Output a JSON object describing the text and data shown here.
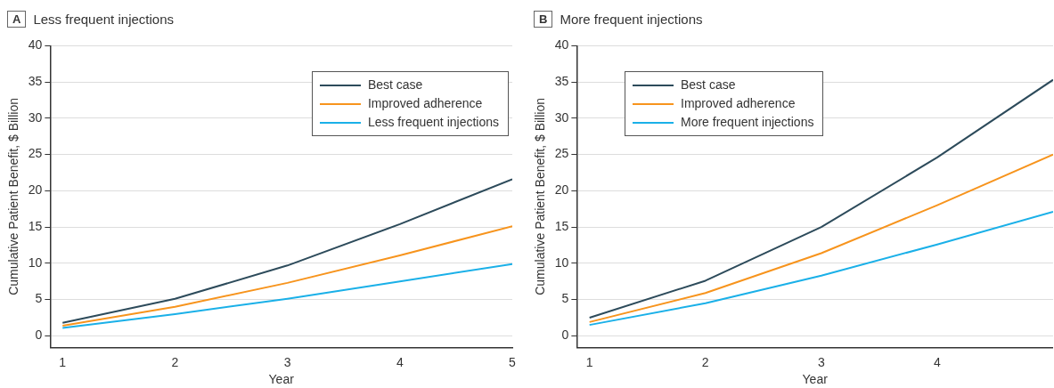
{
  "chart_data": [
    {
      "type": "line",
      "title": "Less frequent injections",
      "annotations": [
        "A"
      ],
      "xlabel": "Year",
      "ylabel": "Cumulative Patient Benefit, $ Billion",
      "x": [
        1,
        2,
        3,
        4,
        5
      ],
      "series": [
        {
          "name": "Best case",
          "color": "#2d4b5b",
          "values": [
            1.8,
            5.1,
            9.7,
            15.4,
            21.6
          ]
        },
        {
          "name": "Improved adherence",
          "color": "#f7941d",
          "values": [
            1.4,
            4.0,
            7.3,
            11.1,
            15.1
          ]
        },
        {
          "name": "Less frequent injections",
          "color": "#1ab0e8",
          "values": [
            1.1,
            3.0,
            5.1,
            7.5,
            9.9
          ]
        }
      ],
      "xlim": [
        0.89,
        5
      ],
      "xticks": [
        1,
        2,
        3,
        4,
        5
      ],
      "ylim": [
        -1.6,
        40
      ],
      "yticks": [
        0,
        5,
        10,
        15,
        20,
        25,
        30,
        35,
        40
      ],
      "grid": "y",
      "legend": "top right",
      "marker": "none",
      "line_style": "solid"
    },
    {
      "type": "line",
      "title": "More frequent injections",
      "annotations": [
        "B"
      ],
      "xlabel": "Year",
      "ylabel": "Cumulative Patient Benefit, $ Billion",
      "x": [
        1,
        2,
        3,
        4,
        5
      ],
      "series": [
        {
          "name": "Best case",
          "color": "#2d4b5b",
          "values": [
            2.5,
            7.6,
            15.0,
            24.6,
            35.3
          ]
        },
        {
          "name": "Improved adherence",
          "color": "#f7941d",
          "values": [
            1.9,
            5.9,
            11.4,
            18.0,
            25.0
          ]
        },
        {
          "name": "More frequent injections",
          "color": "#1ab0e8",
          "values": [
            1.5,
            4.5,
            8.3,
            12.6,
            17.1
          ]
        }
      ],
      "xlim": [
        0.89,
        5
      ],
      "xticks": [
        1,
        2,
        3,
        4
      ],
      "ylim": [
        -1.6,
        40
      ],
      "yticks": [
        0,
        5,
        10,
        15,
        20,
        25,
        30,
        35,
        40
      ],
      "grid": "y",
      "legend": "top left",
      "marker": "none",
      "line_style": "solid"
    }
  ]
}
